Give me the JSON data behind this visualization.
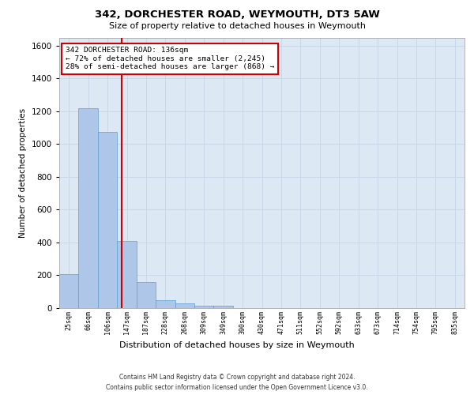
{
  "title": "342, DORCHESTER ROAD, WEYMOUTH, DT3 5AW",
  "subtitle": "Size of property relative to detached houses in Weymouth",
  "xlabel": "Distribution of detached houses by size in Weymouth",
  "ylabel": "Number of detached properties",
  "categories": [
    "25sqm",
    "66sqm",
    "106sqm",
    "147sqm",
    "187sqm",
    "228sqm",
    "268sqm",
    "309sqm",
    "349sqm",
    "390sqm",
    "430sqm",
    "471sqm",
    "511sqm",
    "552sqm",
    "592sqm",
    "633sqm",
    "673sqm",
    "714sqm",
    "754sqm",
    "795sqm",
    "835sqm"
  ],
  "values": [
    205,
    1220,
    1075,
    410,
    160,
    48,
    27,
    15,
    15,
    0,
    0,
    0,
    0,
    0,
    0,
    0,
    0,
    0,
    0,
    0,
    0
  ],
  "bar_color": "#aec6e8",
  "bar_edge_color": "#5a9fd4",
  "grid_color": "#c8d8e8",
  "background_color": "#dce9f5",
  "vline_x_index": 2.72,
  "vline_color": "#cc0000",
  "annotation_line1": "342 DORCHESTER ROAD: 136sqm",
  "annotation_line2": "← 72% of detached houses are smaller (2,245)",
  "annotation_line3": "28% of semi-detached houses are larger (868) →",
  "annotation_box_color": "#cc0000",
  "ylim": [
    0,
    1650
  ],
  "yticks": [
    0,
    200,
    400,
    600,
    800,
    1000,
    1200,
    1400,
    1600
  ],
  "footer_line1": "Contains HM Land Registry data © Crown copyright and database right 2024.",
  "footer_line2": "Contains public sector information licensed under the Open Government Licence v3.0."
}
